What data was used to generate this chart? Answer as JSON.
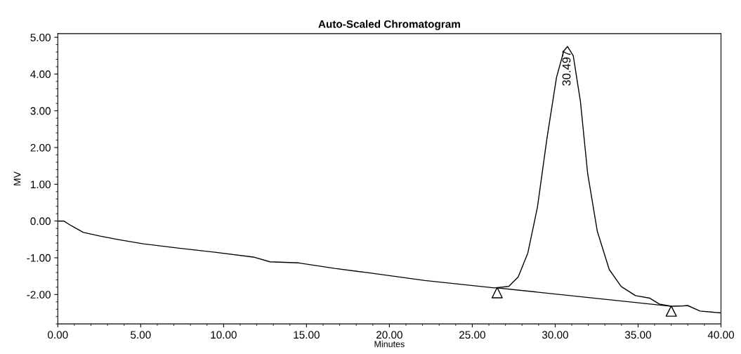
{
  "chart_data": {
    "type": "line",
    "title": "Auto-Scaled Chromatogram",
    "xlabel": "Minutes",
    "ylabel": "MV",
    "xlim": [
      0,
      40
    ],
    "ylim": [
      -2.8,
      5.1
    ],
    "xticks": [
      {
        "value": 0,
        "label": "0.00"
      },
      {
        "value": 5,
        "label": "5.00"
      },
      {
        "value": 10,
        "label": "10.00"
      },
      {
        "value": 15,
        "label": "15.00"
      },
      {
        "value": 20,
        "label": "20.00"
      },
      {
        "value": 25,
        "label": "25.00"
      },
      {
        "value": 30,
        "label": "30.00"
      },
      {
        "value": 35,
        "label": "35.00"
      },
      {
        "value": 40,
        "label": "40.00"
      }
    ],
    "yticks": [
      {
        "value": -2,
        "label": "-2.00"
      },
      {
        "value": -1,
        "label": "-1.00"
      },
      {
        "value": 0,
        "label": "0.00"
      },
      {
        "value": 1,
        "label": "1.00"
      },
      {
        "value": 2,
        "label": "2.00"
      },
      {
        "value": 3,
        "label": "3.00"
      },
      {
        "value": 4,
        "label": "4.00"
      },
      {
        "value": 5,
        "label": "5.00"
      }
    ],
    "grid": false,
    "legend": false,
    "series": [
      {
        "color": "#000000",
        "x": [
          0,
          0.36,
          0.82,
          1.54,
          2.55,
          3.71,
          5.15,
          7.32,
          9.48,
          11.79,
          12.8,
          14.53,
          16.7,
          18.6,
          22.15,
          26.33,
          27.2,
          27.77,
          28.35,
          28.93,
          29.51,
          30.08,
          30.52,
          30.74,
          31.09,
          31.52,
          31.96,
          32.54,
          33.26,
          33.98,
          34.84,
          35.71,
          36.28,
          37.01,
          37.73,
          37.99,
          38.74,
          39.97
        ],
        "values": [
          0,
          0,
          -0.13,
          -0.31,
          -0.41,
          -0.51,
          -0.62,
          -0.74,
          -0.85,
          -0.98,
          -1.11,
          -1.14,
          -1.29,
          -1.4,
          -1.62,
          -1.82,
          -1.78,
          -1.52,
          -0.87,
          0.38,
          2.27,
          3.91,
          4.63,
          4.75,
          4.5,
          3.26,
          1.29,
          -0.28,
          -1.32,
          -1.78,
          -2.03,
          -2.1,
          -2.26,
          -2.32,
          -2.31,
          -2.3,
          -2.45,
          -2.5
        ]
      },
      {
        "color": "#000000",
        "type": "line",
        "x": [
          26.5,
          37.0
        ],
        "values": [
          -1.82,
          -2.32
        ]
      },
      {
        "color": "#000000",
        "type": "scatter",
        "marker": "triangle",
        "x": [
          26.5,
          37.0
        ],
        "values": [
          -1.95,
          -2.45
        ]
      }
    ],
    "annotations": [
      {
        "text": "30.497",
        "x": 30.74,
        "y": 4.75
      }
    ]
  }
}
